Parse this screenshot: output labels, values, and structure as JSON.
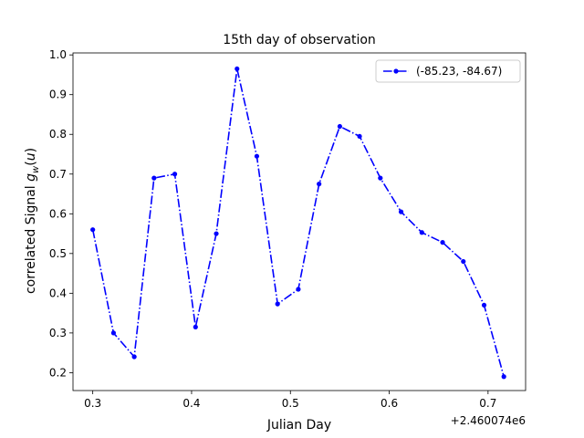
{
  "chart_data": {
    "type": "line",
    "title": "15th day of observation",
    "xlabel": "Julian Day",
    "ylabel": "correlated Signal g_w(u)",
    "x_offset_label": "+2.460074e6",
    "xlim": [
      0.28,
      0.738
    ],
    "ylim": [
      0.155,
      1.005
    ],
    "xticks": [
      0.3,
      0.4,
      0.5,
      0.6,
      0.7
    ],
    "yticks": [
      0.2,
      0.3,
      0.4,
      0.5,
      0.6,
      0.7,
      0.8,
      0.9,
      1.0
    ],
    "grid": false,
    "legend_position": "top-right",
    "series": [
      {
        "name": "(-85.23, -84.67)",
        "color": "#0000ff",
        "line_style": "dash-dot",
        "marker": "circle",
        "x": [
          0.3,
          0.321,
          0.342,
          0.362,
          0.383,
          0.404,
          0.425,
          0.446,
          0.466,
          0.487,
          0.508,
          0.529,
          0.55,
          0.57,
          0.591,
          0.612,
          0.633,
          0.654,
          0.675,
          0.696,
          0.716
        ],
        "y": [
          0.56,
          0.3,
          0.24,
          0.69,
          0.7,
          0.315,
          0.55,
          0.965,
          0.745,
          0.373,
          0.41,
          0.675,
          0.82,
          0.795,
          0.69,
          0.605,
          0.553,
          0.528,
          0.48,
          0.37,
          0.19
        ]
      }
    ]
  }
}
